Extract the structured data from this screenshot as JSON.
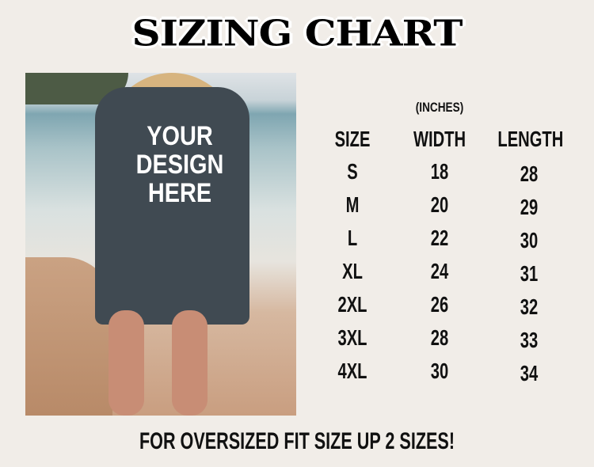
{
  "title": "SIZING CHART",
  "photo": {
    "design_text": [
      "YOUR",
      "DESIGN",
      "HERE"
    ]
  },
  "unit": "(INCHES)",
  "headers": [
    "SIZE",
    "WIDTH",
    "LENGTH"
  ],
  "rows": [
    [
      "S",
      "18",
      "28"
    ],
    [
      "M",
      "20",
      "29"
    ],
    [
      "L",
      "22",
      "30"
    ],
    [
      "XL",
      "24",
      "31"
    ],
    [
      "2XL",
      "26",
      "32"
    ],
    [
      "3XL",
      "28",
      "33"
    ],
    [
      "4XL",
      "30",
      "34"
    ]
  ],
  "footer": "FOR OVERSIZED FIT SIZE UP 2 SIZES!"
}
